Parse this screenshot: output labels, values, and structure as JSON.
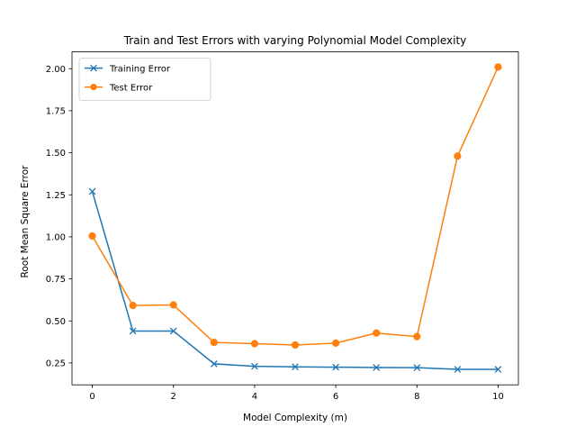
{
  "chart_data": {
    "type": "line",
    "title": "Train and Test Errors with varying Polynomial Model Complexity",
    "xlabel": "Model Complexity (m)",
    "ylabel": "Root Mean Square Error",
    "x": [
      0,
      1,
      2,
      3,
      4,
      5,
      6,
      7,
      8,
      9,
      10
    ],
    "xlim": [
      -0.5,
      10.5
    ],
    "ylim": [
      0.12,
      2.1
    ],
    "xticks": [
      0,
      2,
      4,
      6,
      8,
      10
    ],
    "xtick_labels": [
      "0",
      "2",
      "4",
      "6",
      "8",
      "10"
    ],
    "yticks": [
      0.25,
      0.5,
      0.75,
      1.0,
      1.25,
      1.5,
      1.75,
      2.0
    ],
    "ytick_labels": [
      "0.25",
      "0.50",
      "0.75",
      "1.00",
      "1.25",
      "1.50",
      "1.75",
      "2.00"
    ],
    "grid": false,
    "legend_position": "top-left",
    "series": [
      {
        "name": "Training Error",
        "color": "#1f77b4",
        "marker": "x",
        "values": [
          1.27,
          0.44,
          0.44,
          0.245,
          0.23,
          0.227,
          0.225,
          0.223,
          0.222,
          0.212,
          0.212
        ]
      },
      {
        "name": "Test Error",
        "color": "#ff7f0e",
        "marker": "o",
        "values": [
          1.005,
          0.592,
          0.595,
          0.372,
          0.365,
          0.357,
          0.368,
          0.428,
          0.407,
          1.48,
          2.01
        ]
      }
    ]
  }
}
